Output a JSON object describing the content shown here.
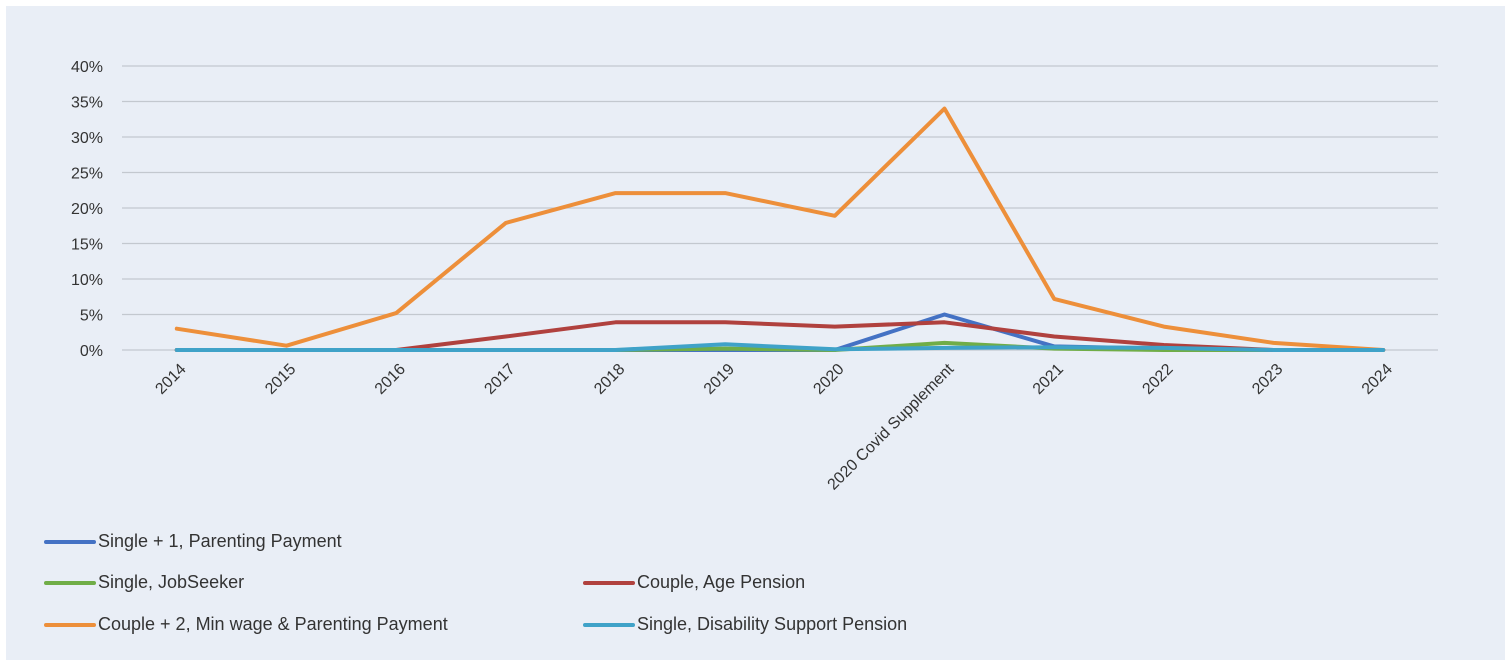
{
  "chart_data": {
    "type": "line",
    "categories": [
      "2014",
      "2015",
      "2016",
      "2017",
      "2018",
      "2019",
      "2020",
      "2020 Covid Supplement",
      "2021",
      "2022",
      "2023",
      "2024"
    ],
    "ylim": [
      0,
      40
    ],
    "yticks": [
      "0%",
      "5%",
      "10%",
      "15%",
      "20%",
      "25%",
      "30%",
      "35%",
      "40%"
    ],
    "grid": true,
    "legend_position": "bottom-left",
    "series": [
      {
        "name": "Single + 1,  Parenting Payment",
        "color": "#4472c4",
        "values": [
          0,
          0,
          0,
          0,
          0,
          0,
          0,
          5,
          0.5,
          0.2,
          0,
          0
        ]
      },
      {
        "name": "Single, JobSeeker",
        "color": "#70ad47",
        "values": [
          0,
          0,
          0,
          0,
          0,
          0.2,
          0,
          1,
          0.2,
          0,
          0,
          0
        ]
      },
      {
        "name": "Couple, Age Pension",
        "color": "#b0413e",
        "values": [
          0,
          0,
          0,
          1.9,
          3.9,
          3.9,
          3.3,
          3.9,
          1.9,
          0.7,
          0,
          0
        ]
      },
      {
        "name": "Couple + 2, Min wage & Parenting Payment",
        "color": "#ed8f3a",
        "values": [
          3,
          0.6,
          5.2,
          17.9,
          22.1,
          22.1,
          18.9,
          34,
          7.2,
          3.3,
          1,
          0
        ]
      },
      {
        "name": "Single, Disability Support Pension",
        "color": "#3fa2c8",
        "values": [
          0,
          0,
          0,
          0,
          0,
          0.8,
          0.1,
          0.3,
          0.4,
          0.3,
          0,
          0
        ]
      }
    ]
  }
}
